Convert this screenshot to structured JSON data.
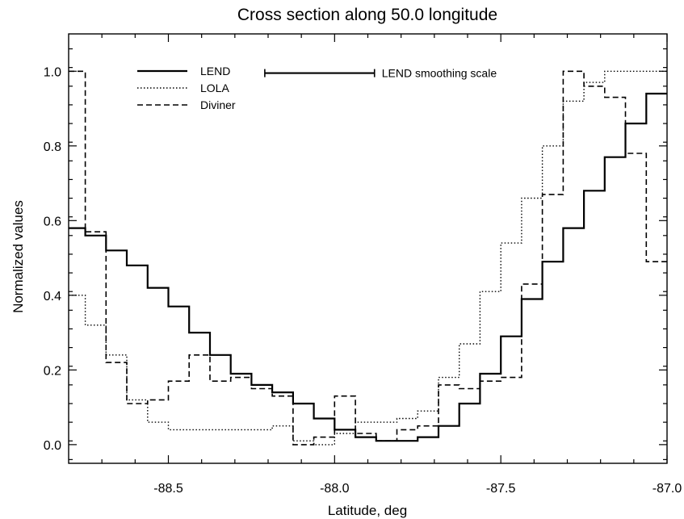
{
  "chart_data": {
    "type": "line",
    "title": "Cross section  along 50.0 longitude",
    "xlabel": "Latitude, deg",
    "ylabel": "Normalized values",
    "xlim": [
      -88.8,
      -87.0
    ],
    "ylim": [
      -0.05,
      1.1
    ],
    "xticks": [
      {
        "value": -88.5,
        "label": "-88.5"
      },
      {
        "value": -88.0,
        "label": "-88.0"
      },
      {
        "value": -87.5,
        "label": "-87.5"
      },
      {
        "value": -87.0,
        "label": "-87.0"
      }
    ],
    "yticks": [
      {
        "value": 0.0,
        "label": "0.0"
      },
      {
        "value": 0.2,
        "label": "0.2"
      },
      {
        "value": 0.4,
        "label": "0.4"
      },
      {
        "value": 0.6,
        "label": "0.6"
      },
      {
        "value": 0.8,
        "label": "0.8"
      },
      {
        "value": 1.0,
        "label": "1.0"
      }
    ],
    "grid": false,
    "legend_position": "top-left",
    "step_width": 0.0625,
    "series": [
      {
        "name": "LEND",
        "style": "solid",
        "x": [
          -88.8,
          -88.75,
          -88.6875,
          -88.625,
          -88.5625,
          -88.5,
          -88.4375,
          -88.375,
          -88.3125,
          -88.25,
          -88.1875,
          -88.125,
          -88.0625,
          -88.0,
          -87.9375,
          -87.875,
          -87.8125,
          -87.75,
          -87.6875,
          -87.625,
          -87.5625,
          -87.5,
          -87.4375,
          -87.375,
          -87.3125,
          -87.25,
          -87.1875,
          -87.125,
          -87.0625
        ],
        "y": [
          0.58,
          0.56,
          0.52,
          0.48,
          0.42,
          0.37,
          0.3,
          0.24,
          0.19,
          0.16,
          0.14,
          0.11,
          0.07,
          0.04,
          0.02,
          0.01,
          0.01,
          0.02,
          0.05,
          0.11,
          0.19,
          0.29,
          0.39,
          0.49,
          0.58,
          0.68,
          0.77,
          0.86,
          0.94
        ]
      },
      {
        "name": "LOLA",
        "style": "dotted",
        "x": [
          -88.8,
          -88.75,
          -88.6875,
          -88.625,
          -88.5625,
          -88.5,
          -88.4375,
          -88.375,
          -88.3125,
          -88.25,
          -88.1875,
          -88.125,
          -88.0625,
          -88.0,
          -87.9375,
          -87.875,
          -87.8125,
          -87.75,
          -87.6875,
          -87.625,
          -87.5625,
          -87.5,
          -87.4375,
          -87.375,
          -87.3125,
          -87.25,
          -87.1875,
          -87.125,
          -87.0625
        ],
        "y": [
          0.4,
          0.32,
          0.24,
          0.12,
          0.06,
          0.04,
          0.04,
          0.04,
          0.04,
          0.04,
          0.05,
          0.01,
          0.0,
          0.03,
          0.06,
          0.06,
          0.07,
          0.09,
          0.18,
          0.27,
          0.41,
          0.54,
          0.66,
          0.8,
          0.92,
          0.97,
          1.0,
          1.0,
          1.0
        ]
      },
      {
        "name": "Diviner",
        "style": "dashed",
        "x": [
          -88.8,
          -88.75,
          -88.6875,
          -88.625,
          -88.5625,
          -88.5,
          -88.4375,
          -88.375,
          -88.3125,
          -88.25,
          -88.1875,
          -88.125,
          -88.0625,
          -88.0,
          -87.9375,
          -87.875,
          -87.8125,
          -87.75,
          -87.6875,
          -87.625,
          -87.5625,
          -87.5,
          -87.4375,
          -87.375,
          -87.3125,
          -87.25,
          -87.1875,
          -87.125,
          -87.0625
        ],
        "y": [
          1.0,
          0.57,
          0.22,
          0.11,
          0.12,
          0.17,
          0.24,
          0.17,
          0.18,
          0.15,
          0.13,
          0.0,
          0.02,
          0.13,
          0.03,
          0.01,
          0.04,
          0.05,
          0.16,
          0.15,
          0.17,
          0.18,
          0.43,
          0.67,
          1.0,
          0.96,
          0.93,
          0.78,
          0.49
        ]
      }
    ],
    "annotation": {
      "text": "LEND smoothing scale",
      "x_start": -88.21,
      "x_end": -87.88,
      "y": 0.995
    }
  }
}
